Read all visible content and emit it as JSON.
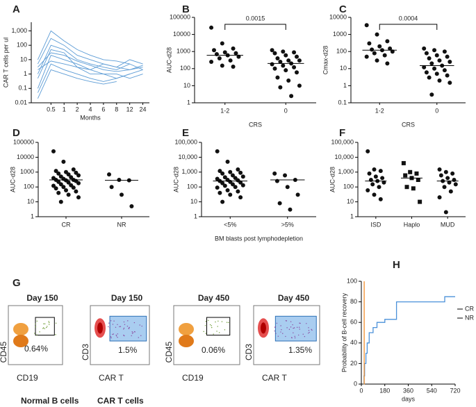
{
  "chart_data": [
    {
      "type": "line",
      "panel": "A",
      "y_label": "CAR T cells  per ul",
      "x_label": "Months",
      "categories": [
        null,
        "0.5",
        "1",
        "2",
        "4",
        "6",
        "8",
        "12",
        "24"
      ],
      "color": "#5b9bd5",
      "yscale": "log",
      "ylim": [
        0.01,
        4000
      ],
      "yticks": [
        0.01,
        0.1,
        1,
        10,
        100,
        {
          "value": 1000,
          "label": "1,000"
        }
      ],
      "series": [
        {
          "values": [
            5,
            300,
            100,
            20,
            10,
            5,
            3,
            2,
            3
          ]
        },
        {
          "values": [
            1,
            100,
            50,
            10,
            5,
            3,
            2,
            5,
            2
          ]
        },
        {
          "values": [
            0.1,
            20,
            10,
            5,
            2,
            1,
            1,
            0.5,
            1
          ]
        },
        {
          "values": [
            0.5,
            50,
            30,
            3,
            2,
            5,
            3,
            10,
            5
          ]
        },
        {
          "values": [
            2,
            8,
            5,
            3,
            1,
            1,
            0.5,
            1,
            null
          ]
        },
        {
          "values": [
            0.05,
            5,
            2,
            1,
            0.5,
            0.3,
            0.5,
            1,
            2
          ]
        },
        {
          "values": [
            10,
            1000,
            200,
            50,
            20,
            10,
            8,
            5,
            null
          ]
        },
        {
          "values": [
            0.02,
            2,
            1,
            0.5,
            0.3,
            0.2,
            0.3,
            null,
            null
          ]
        },
        {
          "values": [
            3,
            30,
            20,
            8,
            4,
            2,
            1.5,
            2,
            4
          ]
        }
      ]
    },
    {
      "type": "dotplot",
      "panel": "B",
      "y_label": "AUC-d28",
      "x_label": "CRS",
      "annotation": "0.0015",
      "categories": [
        "1-2",
        "0"
      ],
      "color": "#111",
      "yscale": "log",
      "ylim": [
        1,
        100000
      ],
      "yticks": [
        1,
        10,
        100,
        1000,
        10000,
        100000
      ],
      "values": [
        [
          25000,
          3000,
          1500,
          1200,
          900,
          800,
          700,
          600,
          500,
          400,
          300,
          250,
          150,
          130
        ],
        [
          1200,
          1000,
          900,
          800,
          600,
          500,
          400,
          300,
          300,
          250,
          200,
          180,
          150,
          120,
          100,
          80,
          60,
          30,
          20,
          10,
          8,
          2.5
        ]
      ],
      "medians": [
        600,
        200
      ]
    },
    {
      "type": "dotplot",
      "panel": "C",
      "y_label": "Cmax-d28",
      "x_label": "CRS",
      "annotation": "0.0004",
      "categories": [
        "1-2",
        "0"
      ],
      "color": "#111",
      "yscale": "log",
      "ylim": [
        0.1,
        10000
      ],
      "yticks": [
        0.1,
        1,
        10,
        100,
        1000,
        10000
      ],
      "values": [
        [
          3500,
          1000,
          400,
          300,
          200,
          150,
          130,
          120,
          100,
          80,
          60,
          50,
          30,
          20
        ],
        [
          150,
          120,
          100,
          80,
          60,
          50,
          40,
          30,
          25,
          20,
          15,
          12,
          10,
          8,
          6,
          5,
          4,
          3,
          2,
          1.5,
          0.3
        ]
      ],
      "medians": [
        120,
        15
      ]
    },
    {
      "type": "dotplot",
      "panel": "D",
      "y_label": "AUC-d28",
      "categories": [
        "CR",
        "NR"
      ],
      "color": "#111",
      "yscale": "log",
      "ylim": [
        1,
        100000
      ],
      "yticks": [
        1,
        10,
        100,
        1000,
        10000,
        100000
      ],
      "values": [
        [
          25000,
          5000,
          1500,
          1200,
          1000,
          900,
          800,
          700,
          600,
          500,
          450,
          400,
          350,
          300,
          300,
          280,
          250,
          220,
          200,
          180,
          150,
          130,
          120,
          100,
          90,
          80,
          60,
          50,
          40,
          30,
          20,
          10
        ],
        [
          700,
          300,
          280,
          100,
          30,
          5
        ]
      ],
      "medians": [
        300,
        280
      ]
    },
    {
      "type": "dotplot",
      "panel": "E",
      "y_label": "AUC-d28",
      "x_label": "BM blasts post lymphodepletion",
      "categories": [
        "<5%",
        ">5%"
      ],
      "color": "#111",
      "yscale": "log",
      "ylim": [
        1,
        100000
      ],
      "yticks": [
        1,
        10,
        100,
        {
          "value": 1000,
          "label": "1,000"
        },
        {
          "value": 10000,
          "label": "10,000"
        },
        {
          "value": 100000,
          "label": "100,000"
        }
      ],
      "values": [
        [
          25000,
          5000,
          1500,
          1200,
          1000,
          900,
          800,
          600,
          500,
          450,
          400,
          350,
          300,
          280,
          250,
          220,
          200,
          180,
          150,
          130,
          120,
          100,
          90,
          60,
          50,
          40,
          30,
          20,
          10
        ],
        [
          800,
          600,
          300,
          250,
          100,
          30,
          8,
          3
        ]
      ],
      "medians": [
        250,
        300
      ]
    },
    {
      "type": "dotplot",
      "panel": "F",
      "y_label": "AUC-d28",
      "categories": [
        "ISD",
        "Haplo",
        "MUD"
      ],
      "markers": [
        "circle",
        "square",
        "circle"
      ],
      "color": "#111",
      "yscale": "log",
      "ylim": [
        1,
        100000
      ],
      "yticks": [
        1,
        10,
        100,
        {
          "value": 1000,
          "label": "1,000"
        },
        {
          "value": 10000,
          "label": "10,000"
        },
        {
          "value": 100000,
          "label": "100,000"
        }
      ],
      "values": [
        [
          25000,
          1500,
          1200,
          800,
          500,
          400,
          300,
          250,
          200,
          150,
          100,
          60,
          30,
          15
        ],
        [
          4000,
          1000,
          800,
          600,
          400,
          300,
          100,
          80,
          10
        ],
        [
          1500,
          1000,
          800,
          600,
          400,
          300,
          250,
          200,
          150,
          100,
          50,
          20,
          2
        ]
      ],
      "medians": [
        250,
        400,
        250
      ]
    },
    {
      "type": "step",
      "panel": "H",
      "y_label": "Probability of B-cell recovery",
      "x_label": "days",
      "xlim": [
        0,
        720
      ],
      "xticks": [
        0,
        180,
        360,
        540,
        720
      ],
      "ylim": [
        0,
        100
      ],
      "yticks": [
        0,
        20,
        40,
        60,
        80,
        100
      ],
      "legend": "right",
      "series": [
        {
          "name": "CR",
          "color": "#4a90d9",
          "x": [
            15,
            20,
            25,
            35,
            45,
            60,
            90,
            120,
            180,
            270,
            640,
            720
          ],
          "values": [
            0,
            8,
            20,
            30,
            40,
            50,
            55,
            60,
            63,
            80,
            85,
            85
          ]
        },
        {
          "name": "NR",
          "color": "#f28e2b",
          "x": [
            18,
            22
          ],
          "values": [
            0,
            100
          ]
        }
      ]
    }
  ],
  "flow_panel": {
    "panel": "G",
    "plots": [
      {
        "day": "Day 150",
        "day_color": "#e87722",
        "y_label": "CD45",
        "x_label": "CD19",
        "percent": "0.64%"
      },
      {
        "day": "Day 150",
        "day_color": "#e87722",
        "y_label": "CD3",
        "x_label": "CAR T",
        "percent": "1.5%"
      },
      {
        "day": "Day 450",
        "day_color": "#4472c4",
        "y_label": "CD45",
        "x_label": "CD19",
        "percent": "0.06%"
      },
      {
        "day": "Day 450",
        "day_color": "#4472c4",
        "y_label": "CD3",
        "x_label": "CAR T",
        "percent": "1.35%"
      }
    ],
    "legend": [
      {
        "text": "Normal B cells",
        "color": "#e87722"
      },
      {
        "text": "CAR T cells",
        "color": "#4472c4"
      }
    ]
  }
}
